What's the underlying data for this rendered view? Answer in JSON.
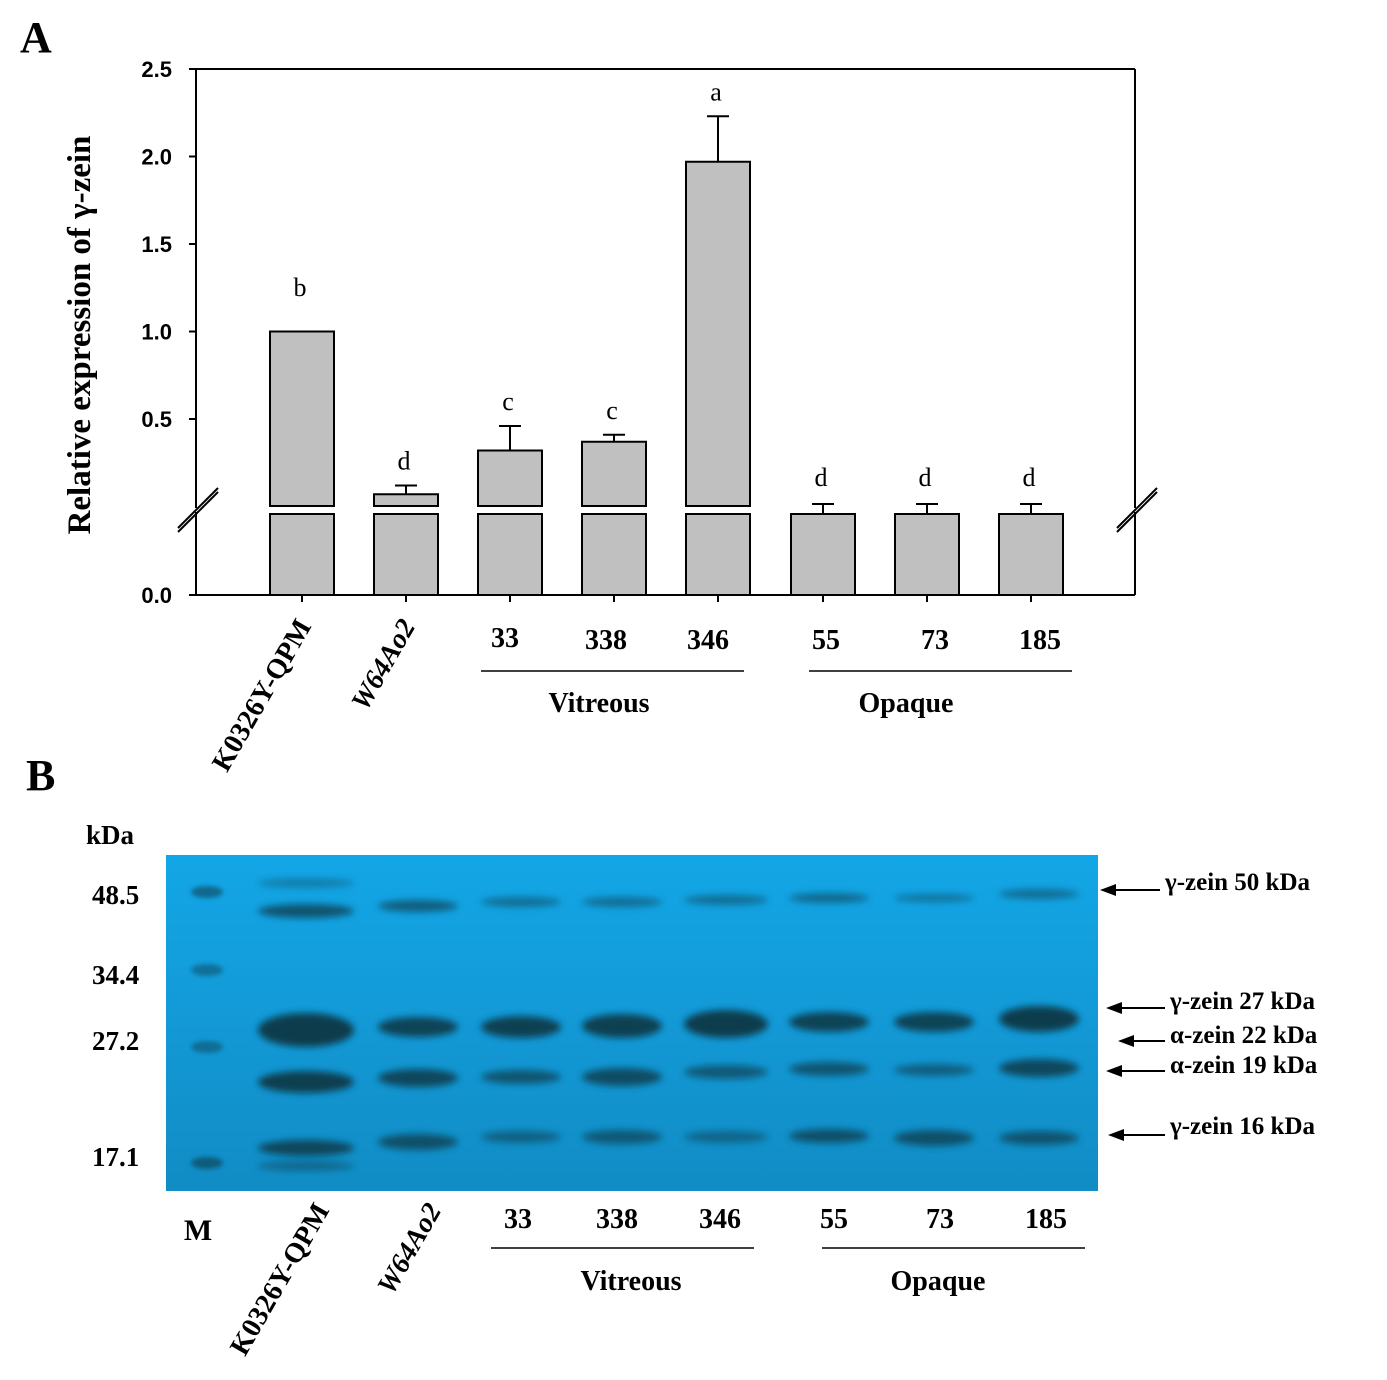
{
  "panel_a_label": "A",
  "panel_b_label": "B",
  "chart_data": {
    "type": "bar",
    "title": "",
    "xlabel": "",
    "ylabel": "Relative expression of γ-zein",
    "categories": [
      "K0326Y-QPM",
      "W64Ao2",
      "33",
      "338",
      "346",
      "55",
      "73",
      "185"
    ],
    "values": [
      1.0,
      0.07,
      0.32,
      0.37,
      1.97,
      0.03,
      0.03,
      0.03
    ],
    "errors": [
      0.0,
      0.05,
      0.14,
      0.04,
      0.26,
      0.05,
      0.05,
      0.05
    ],
    "significance": [
      "b",
      "d",
      "c",
      "c",
      "a",
      "d",
      "d",
      "d"
    ],
    "yticks": [
      "0.0",
      "0.5",
      "1.0",
      "1.5",
      "2.0",
      "2.5"
    ],
    "ylim": [
      0,
      2.5
    ],
    "axis_break": true,
    "bar_color": "#c0c0c0",
    "groups": [
      {
        "label": "Vitreous",
        "members": [
          "33",
          "338",
          "346"
        ]
      },
      {
        "label": "Opaque",
        "members": [
          "55",
          "73",
          "185"
        ]
      }
    ]
  },
  "gel": {
    "marker_unit": "kDa",
    "marker_sizes": [
      "48.5",
      "34.4",
      "27.2",
      "17.1"
    ],
    "lane_labels": [
      "M",
      "K0326Y-QPM",
      "W64Ao2",
      "33",
      "338",
      "346",
      "55",
      "73",
      "185"
    ],
    "groups": [
      {
        "label": "Vitreous"
      },
      {
        "label": "Opaque"
      }
    ],
    "band_annotations": [
      "γ-zein 50 kDa",
      "γ-zein 27 kDa",
      "α-zein 22 kDa",
      "α-zein 19 kDa",
      "γ-zein 16 kDa"
    ],
    "gel_color": "#1299d4",
    "band_color": "#0b3a48"
  }
}
